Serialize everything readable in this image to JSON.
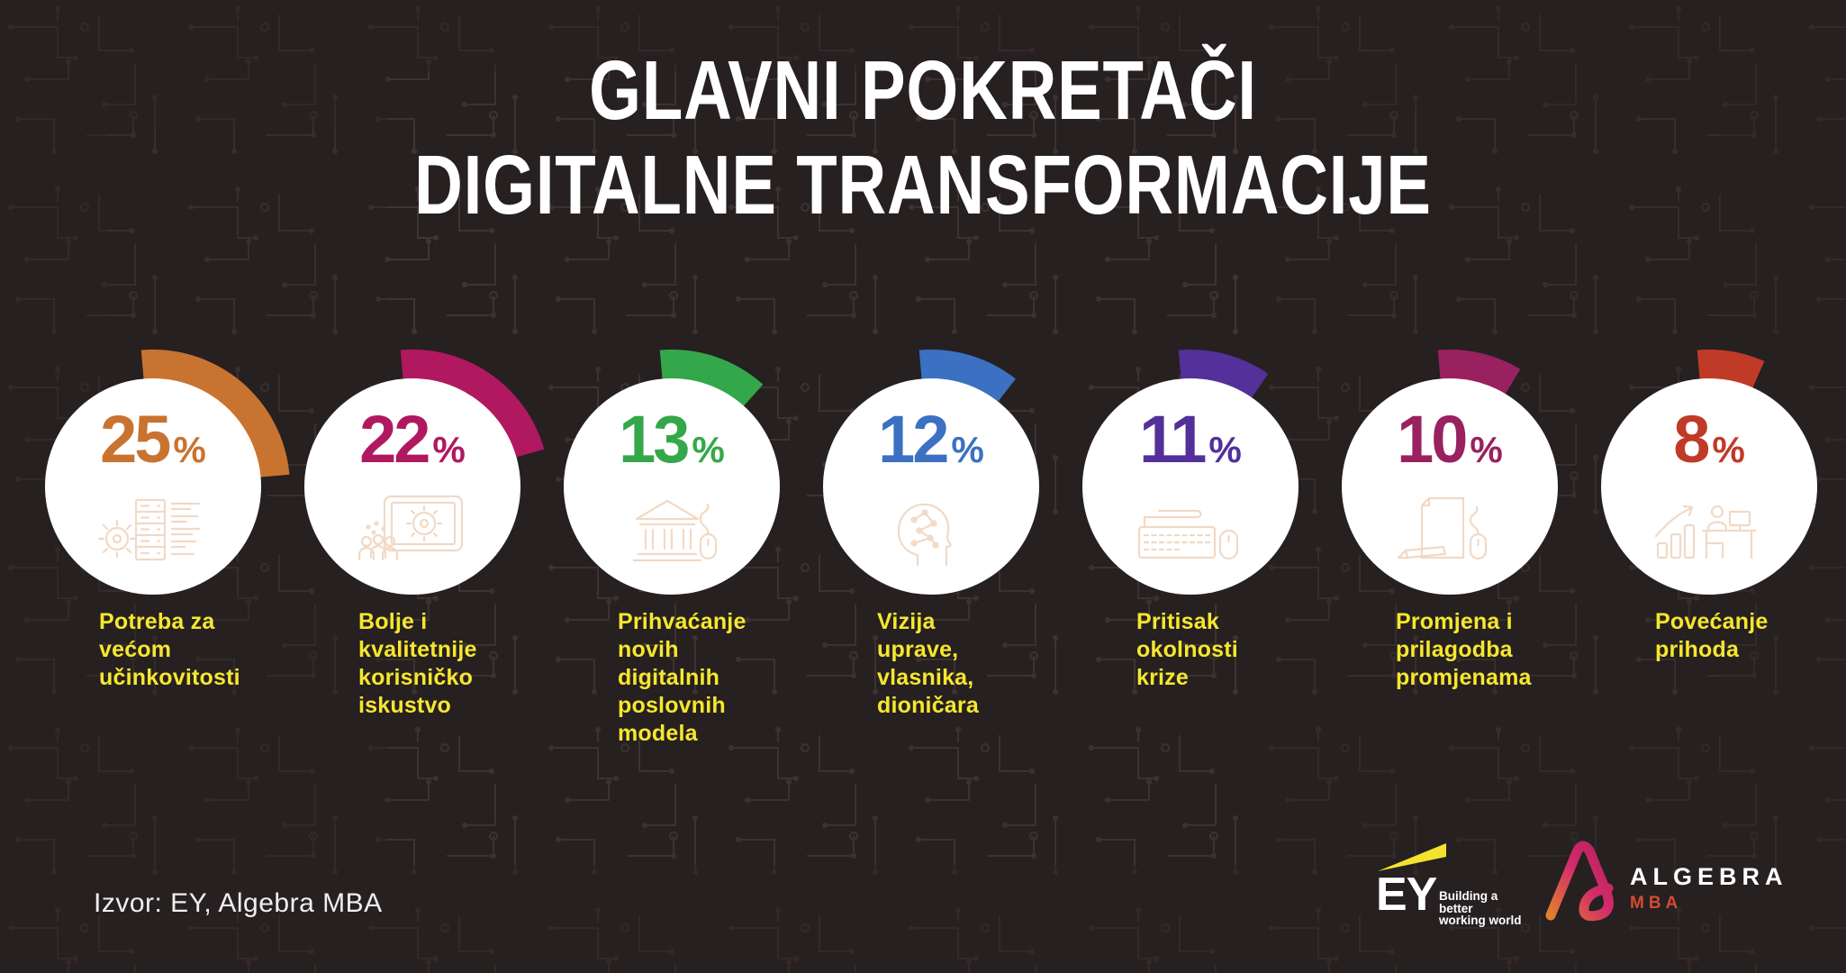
{
  "title": {
    "line1": "GLAVNI POKRETAČI",
    "line2": "DIGITALNE TRANSFORMACIJE"
  },
  "drivers": [
    {
      "value": "25",
      "unit": "%",
      "color": "#c97330",
      "icon": "gear-server-icon",
      "label": "Potreba za\nvećom\nučinkovitosti"
    },
    {
      "value": "22",
      "unit": "%",
      "color": "#b0195f",
      "icon": "tablet-gear-people-icon",
      "label": "Bolje i\nkvalitetnije\nkorisničko\niskustvo"
    },
    {
      "value": "13",
      "unit": "%",
      "color": "#35a74b",
      "icon": "bank-mouse-icon",
      "label": "Prihvaćanje\nnovih\ndigitalnih\nposlovnih\nmodela"
    },
    {
      "value": "12",
      "unit": "%",
      "color": "#3c70c2",
      "icon": "ai-head-icon",
      "label": "Vizija\nuprave,\nvlasnika,\ndioničara"
    },
    {
      "value": "11",
      "unit": "%",
      "color": "#53309a",
      "icon": "keyboard-mouse-icon",
      "label": "Pritisak\nokolnosti\nkrize"
    },
    {
      "value": "10",
      "unit": "%",
      "color": "#99215f",
      "icon": "document-pencil-mouse-icon",
      "label": "Promjena i\nprilagodba\npromjenama"
    },
    {
      "value": "8",
      "unit": "%",
      "color": "#c03a28",
      "icon": "growth-chart-desk-icon",
      "label": "Povećanje\nprihoda"
    }
  ],
  "footer": {
    "source": "Izvor: EY, Algebra MBA"
  },
  "logos": {
    "ey": {
      "name": "EY",
      "tagline": "Building a better\nworking world"
    },
    "algebra": {
      "name": "ALGEBRA",
      "program": "MBA"
    }
  },
  "colors": {
    "background": "#262021",
    "label_yellow": "#f6e72e",
    "circle_fill": "#ffffff",
    "icon_line": "#f1d9c5",
    "title_text": "#ffffff",
    "ey_yellow": "#f4e32d",
    "algebra_gradient_start": "#e0802c",
    "algebra_gradient_end": "#d42a6b",
    "algebra_mba": "#d64a30"
  },
  "chart_data": {
    "type": "pie",
    "title": "GLAVNI POKRETAČI DIGITALNE TRANSFORMACIJE",
    "categories": [
      "Potreba za većom učinkovitosti",
      "Bolje i kvalitetnije korisničko iskustvo",
      "Prihvaćanje novih digitalnih poslovnih modela",
      "Vizija uprave, vlasnika, dioničara",
      "Pritisak okolnosti krize",
      "Promjena i prilagodba promjenama",
      "Povećanje prihoda"
    ],
    "values": [
      25,
      22,
      13,
      12,
      11,
      10,
      8
    ],
    "unit": "percent",
    "series_colors": [
      "#c97330",
      "#b0195f",
      "#35a74b",
      "#3c70c2",
      "#53309a",
      "#99215f",
      "#c03a28"
    ],
    "annotation_style": "partial ring arcs, each arc sweep = value × 3.6°, starting at 12 o'clock",
    "legend_position": "labels below each circle",
    "source": "Izvor: EY, Algebra MBA"
  }
}
